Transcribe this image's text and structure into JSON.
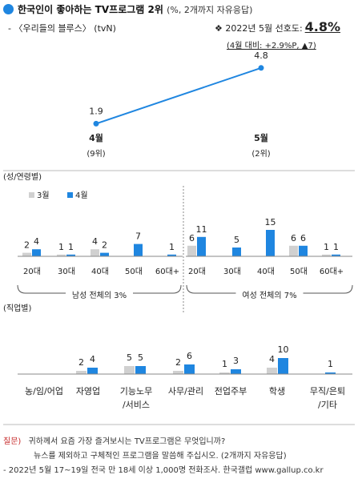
{
  "header": {
    "title": "한국인이 좋아하는 TV프로그램 2위",
    "title_note": "(%, 2개까지 자유응답)",
    "subtitle": "- 〈우리들의 블루스〉 (tvN)",
    "pref_prefix": "❖ 2022년 5월 선호도:",
    "pref_value": "4.8%",
    "change": "(4월 대비: +2.9%P, ▲7)"
  },
  "colors": {
    "accent_blue": "#1f86e0",
    "gray_bar": "#d0d0d0",
    "line": "#1f86e0",
    "question_red": "#c62828"
  },
  "chart_data": [
    {
      "type": "line",
      "x": [
        "4월",
        "5월"
      ],
      "x_ranks": [
        "(9위)",
        "(2위)"
      ],
      "values": [
        1.9,
        4.8
      ]
    },
    {
      "type": "bar",
      "section_label": "(성/연령별)",
      "legend": [
        "3월",
        "4월"
      ],
      "series": [
        {
          "name": "3월",
          "values": [
            2,
            1,
            4,
            null,
            null,
            6,
            null,
            null,
            6,
            1
          ]
        },
        {
          "name": "4월",
          "values": [
            4,
            1,
            2,
            7,
            1,
            11,
            5,
            15,
            6,
            1
          ]
        }
      ],
      "value_labels": {
        "3월": [
          "2",
          "1",
          "4",
          "",
          "",
          "6",
          "",
          "",
          "6",
          "1"
        ],
        "4월": [
          "4",
          "1",
          "2",
          "7",
          "1",
          "11",
          "5",
          "15",
          "6",
          "1"
        ]
      },
      "categories": [
        "20대",
        "30대",
        "40대",
        "50대",
        "60대+",
        "20대",
        "30대",
        "40대",
        "50대",
        "60대+"
      ],
      "groups": [
        {
          "label": "남성 전체의 3%"
        },
        {
          "label": "여성 전체의 7%"
        }
      ]
    },
    {
      "type": "bar",
      "section_label": "(직업별)",
      "series": [
        {
          "name": "3월",
          "values": [
            null,
            2,
            5,
            2,
            1,
            4,
            null
          ]
        },
        {
          "name": "4월",
          "values": [
            null,
            4,
            5,
            6,
            3,
            10,
            1
          ]
        }
      ],
      "value_labels": {
        "3월": [
          "",
          "2",
          "5",
          "2",
          "1",
          "4",
          ""
        ],
        "4월": [
          "",
          "4",
          "5",
          "6",
          "3",
          "10",
          "1"
        ]
      },
      "categories": [
        [
          "농/임/어업"
        ],
        [
          "자영업"
        ],
        [
          "기능노무",
          "/서비스"
        ],
        [
          "사무/관리"
        ],
        [
          "전업주부"
        ],
        [
          "학생"
        ],
        [
          "무직/은퇴",
          "/기타"
        ]
      ]
    }
  ],
  "footer": {
    "question_label": "질문)",
    "question_line1": "귀하께서 요즘 가장 즐겨보시는 TV프로그램은 무엇입니까?",
    "question_line2": "뉴스를 제외하고 구체적인 프로그램을 말씀해 주십시오. (2개까지 자유응답)",
    "source": "- 2022년 5월 17~19일 전국 만 18세 이상 1,000명 전화조사. 한국갤럽 www.gallup.co.kr"
  }
}
